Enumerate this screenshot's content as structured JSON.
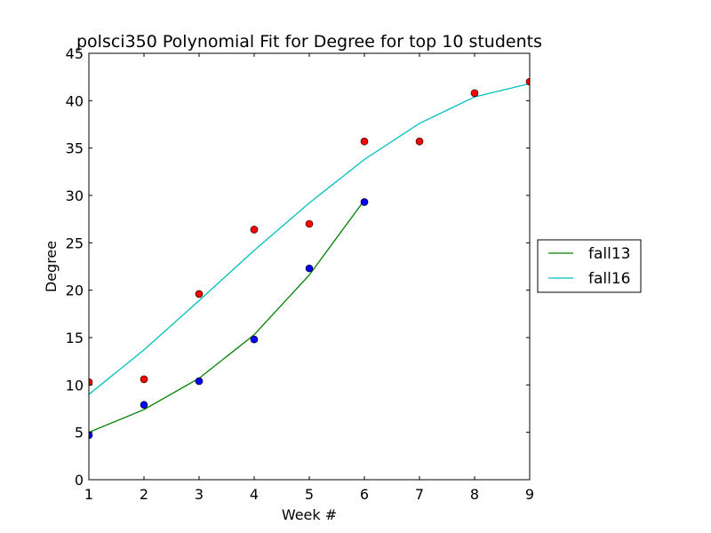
{
  "chart_data": {
    "type": "line",
    "title": "polsci350 Polynomial Fit for Degree for top 10 students",
    "xlabel": "Week #",
    "ylabel": "Degree",
    "xlim": [
      1,
      9
    ],
    "ylim": [
      0,
      45
    ],
    "xticks": [
      1,
      2,
      3,
      4,
      5,
      6,
      7,
      8,
      9
    ],
    "yticks": [
      0,
      5,
      10,
      15,
      20,
      25,
      30,
      35,
      40,
      45
    ],
    "grid": false,
    "legend_position": "right",
    "series": [
      {
        "name": "fall13",
        "type": "line",
        "color": "#008000",
        "x": [
          1,
          2,
          3,
          4,
          5,
          6
        ],
        "y": [
          5.0,
          7.4,
          10.7,
          15.3,
          21.6,
          29.5
        ]
      },
      {
        "name": "fall16",
        "type": "line",
        "color": "#00bfbf",
        "x": [
          1,
          2,
          3,
          4,
          5,
          6,
          7,
          8,
          9
        ],
        "y": [
          9.0,
          13.7,
          18.9,
          24.2,
          29.2,
          33.8,
          37.6,
          40.4,
          41.8
        ]
      },
      {
        "type": "scatter",
        "color": "#0000ff",
        "x": [
          1,
          2,
          3,
          4,
          5,
          6
        ],
        "y": [
          4.7,
          7.9,
          10.4,
          14.8,
          22.3,
          29.3
        ]
      },
      {
        "type": "scatter",
        "color": "#ff0000",
        "x": [
          1,
          2,
          3,
          4,
          5,
          6,
          7,
          8,
          9
        ],
        "y": [
          10.3,
          10.6,
          19.6,
          26.4,
          27.0,
          35.7,
          35.7,
          40.8,
          42.0
        ]
      }
    ]
  }
}
